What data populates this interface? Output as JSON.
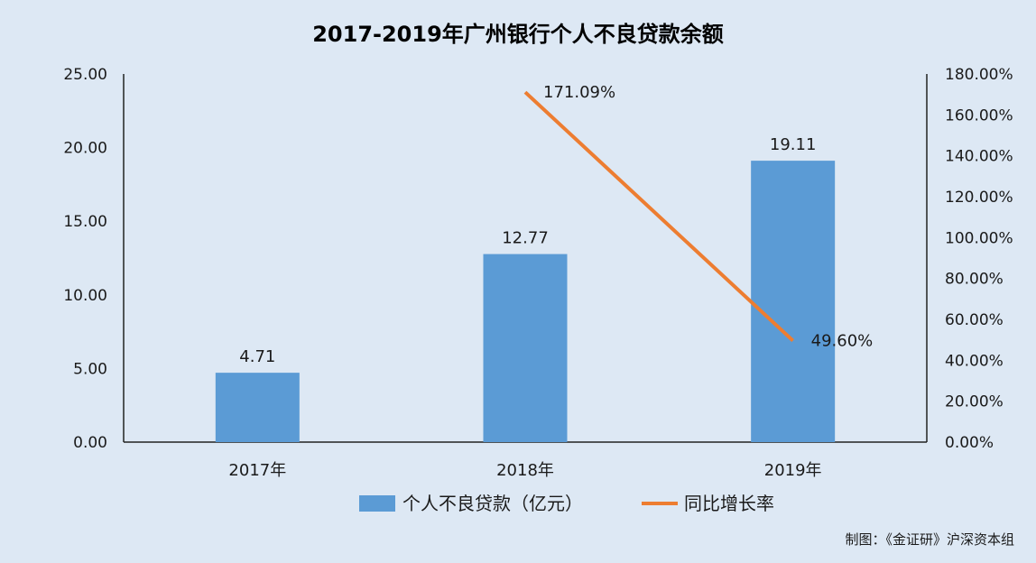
{
  "chart_data": {
    "type": "bar",
    "title": "2017-2019年广州银行个人不良贷款余额",
    "categories": [
      "2017年",
      "2018年",
      "2019年"
    ],
    "series": [
      {
        "name": "个人不良贷款（亿元）",
        "type": "bar",
        "axis": "left",
        "color": "#5b9bd5",
        "values": [
          4.71,
          12.77,
          19.11
        ],
        "labels": [
          "4.71",
          "12.77",
          "19.11"
        ]
      },
      {
        "name": "同比增长率",
        "type": "line",
        "axis": "right",
        "color": "#ed7d31",
        "values": [
          null,
          171.09,
          49.6
        ],
        "labels": [
          "",
          "171.09%",
          "49.60%"
        ]
      }
    ],
    "y_left": {
      "lim": [
        0,
        25
      ],
      "ticks": [
        "0.00",
        "5.00",
        "10.00",
        "15.00",
        "20.00",
        "25.00"
      ]
    },
    "y_right": {
      "lim": [
        0,
        180
      ],
      "ticks": [
        "0.00%",
        "20.00%",
        "40.00%",
        "60.00%",
        "80.00%",
        "100.00%",
        "120.00%",
        "140.00%",
        "160.00%",
        "180.00%"
      ]
    },
    "grid": false,
    "legend_position": "bottom",
    "credit": "制图：《金证研》沪深资本组"
  }
}
